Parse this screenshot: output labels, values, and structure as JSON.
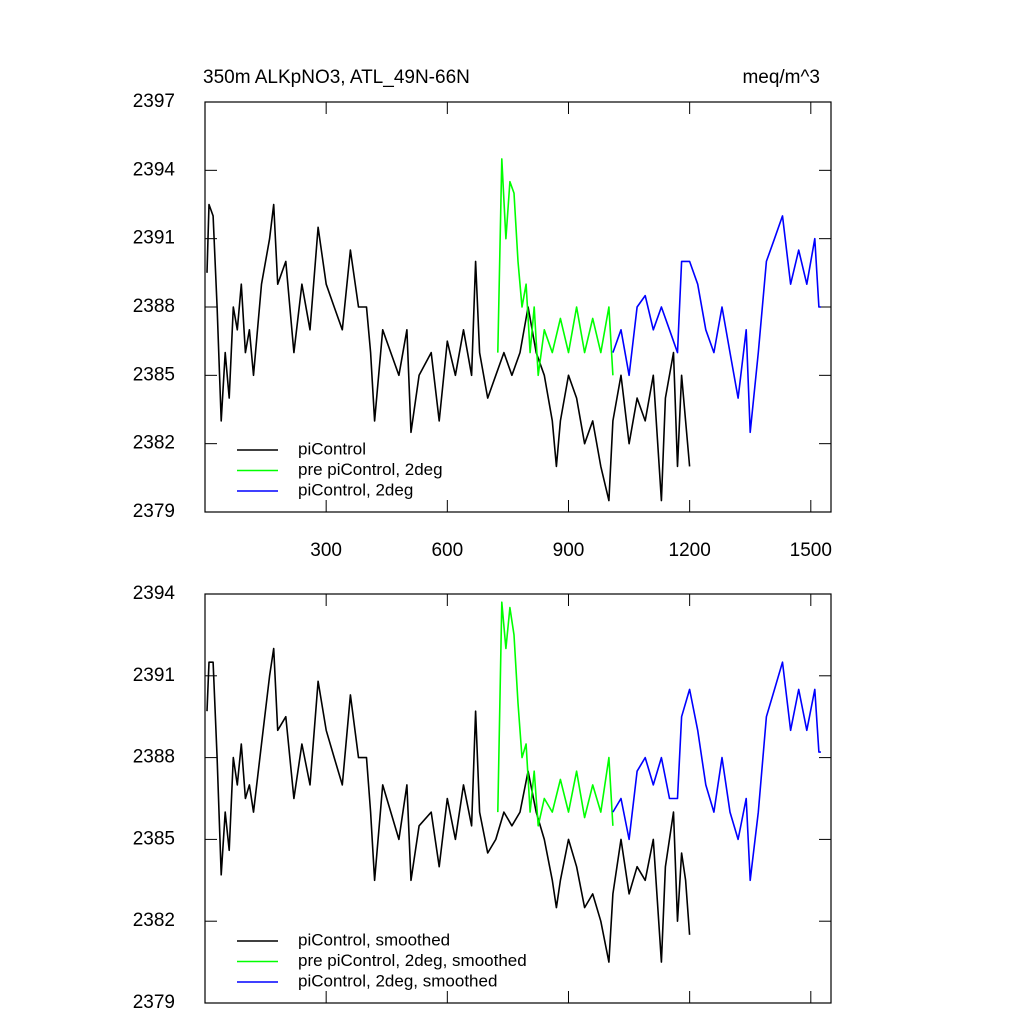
{
  "chart_data": [
    {
      "type": "line",
      "title": "350m ALKpNO3, ATL_49N-66N",
      "units": "meq/m^3",
      "xlim": [
        0,
        1550
      ],
      "xticks": [
        300,
        600,
        900,
        1200,
        1500
      ],
      "xtick_labels": true,
      "ylim": [
        2379,
        2397
      ],
      "yticks": [
        2379,
        2382,
        2385,
        2388,
        2391,
        2394,
        2397
      ],
      "legend": "lower left",
      "series": [
        {
          "name": "piControl",
          "color": "#000000",
          "x": [
            5,
            10,
            20,
            30,
            40,
            50,
            60,
            70,
            80,
            90,
            100,
            110,
            120,
            140,
            160,
            170,
            180,
            200,
            220,
            240,
            260,
            280,
            300,
            320,
            340,
            360,
            380,
            400,
            410,
            420,
            440,
            460,
            480,
            500,
            510,
            530,
            560,
            580,
            600,
            620,
            640,
            660,
            670,
            680,
            700,
            720,
            740,
            760,
            780,
            800,
            820,
            840,
            860,
            870,
            880,
            900,
            920,
            940,
            960,
            980,
            1000,
            1010,
            1030,
            1050,
            1070,
            1090,
            1110,
            1130,
            1140,
            1160,
            1170,
            1180,
            1190,
            1200
          ],
          "values": [
            2389.5,
            2392.5,
            2392,
            2388,
            2383,
            2386,
            2384,
            2388,
            2387,
            2389,
            2386,
            2387,
            2385,
            2389,
            2391,
            2392.5,
            2389,
            2390,
            2386,
            2389,
            2387,
            2391.5,
            2389,
            2388,
            2387,
            2390.5,
            2388,
            2388,
            2386,
            2383,
            2387,
            2386,
            2385,
            2387,
            2382.5,
            2385,
            2386,
            2383,
            2386.5,
            2385,
            2387,
            2385,
            2390,
            2386,
            2384,
            2385,
            2386,
            2385,
            2386,
            2388,
            2386,
            2385,
            2383,
            2381,
            2383,
            2385,
            2384,
            2382,
            2383,
            2381,
            2379.5,
            2383,
            2385,
            2382,
            2384,
            2383,
            2385,
            2379.5,
            2384,
            2386,
            2381,
            2385,
            2383,
            2381
          ]
        },
        {
          "name": "pre piControl, 2deg",
          "color": "#00ff00",
          "x": [
            725,
            735,
            745,
            755,
            765,
            775,
            785,
            795,
            805,
            815,
            825,
            840,
            860,
            880,
            900,
            920,
            940,
            960,
            980,
            1000,
            1010
          ],
          "values": [
            2386,
            2394.5,
            2391,
            2393.5,
            2393,
            2390,
            2388,
            2389,
            2386,
            2388,
            2385,
            2387,
            2386,
            2387.5,
            2386,
            2388,
            2386,
            2387.5,
            2386,
            2388,
            2385
          ]
        },
        {
          "name": "piControl, 2deg",
          "color": "#0000ff",
          "x": [
            1010,
            1030,
            1050,
            1070,
            1090,
            1110,
            1130,
            1150,
            1170,
            1180,
            1200,
            1220,
            1240,
            1260,
            1280,
            1300,
            1320,
            1340,
            1350,
            1370,
            1390,
            1410,
            1430,
            1450,
            1470,
            1490,
            1510,
            1520,
            1525
          ],
          "values": [
            2386,
            2387,
            2385,
            2388,
            2388.5,
            2387,
            2388,
            2387,
            2386,
            2390,
            2390,
            2389,
            2387,
            2386,
            2388,
            2386,
            2384,
            2387,
            2382.5,
            2386,
            2390,
            2391,
            2392,
            2389,
            2390.5,
            2389,
            2391,
            2388,
            2388
          ]
        }
      ]
    },
    {
      "type": "line",
      "xlim": [
        0,
        1550
      ],
      "xticks": [
        300,
        600,
        900,
        1200,
        1500
      ],
      "xtick_labels": false,
      "ylim": [
        2379,
        2394
      ],
      "yticks": [
        2379,
        2382,
        2385,
        2388,
        2391,
        2394
      ],
      "legend": "lower left",
      "series": [
        {
          "name": "piControl, smoothed",
          "color": "#000000",
          "x": [
            5,
            10,
            20,
            30,
            40,
            50,
            60,
            70,
            80,
            90,
            100,
            110,
            120,
            140,
            160,
            170,
            180,
            200,
            220,
            240,
            260,
            280,
            300,
            320,
            340,
            360,
            380,
            400,
            410,
            420,
            440,
            460,
            480,
            500,
            510,
            530,
            560,
            580,
            600,
            620,
            640,
            660,
            670,
            680,
            700,
            720,
            740,
            760,
            780,
            800,
            820,
            840,
            860,
            870,
            880,
            900,
            920,
            940,
            960,
            980,
            1000,
            1010,
            1030,
            1050,
            1070,
            1090,
            1110,
            1130,
            1140,
            1160,
            1170,
            1180,
            1190,
            1200
          ],
          "values": [
            2389.7,
            2391.5,
            2391.5,
            2388,
            2383.7,
            2386,
            2384.6,
            2388,
            2387,
            2388.5,
            2386.5,
            2387,
            2386,
            2388.5,
            2391,
            2392,
            2389,
            2389.5,
            2386.5,
            2388.5,
            2387,
            2390.8,
            2389,
            2388,
            2387,
            2390.3,
            2388,
            2388,
            2386,
            2383.5,
            2387,
            2386,
            2385,
            2387,
            2383.5,
            2385.5,
            2386,
            2384,
            2386.5,
            2385,
            2387,
            2385.5,
            2389.7,
            2386,
            2384.5,
            2385,
            2386,
            2385.5,
            2386,
            2387.5,
            2386,
            2385,
            2383.5,
            2382.5,
            2383.5,
            2385,
            2384,
            2382.5,
            2383,
            2382,
            2380.5,
            2383,
            2385,
            2383,
            2384,
            2383.5,
            2385,
            2380.5,
            2384,
            2386,
            2382,
            2384.5,
            2383.5,
            2381.5
          ]
        },
        {
          "name": "pre piControl, 2deg, smoothed",
          "color": "#00ff00",
          "x": [
            725,
            735,
            745,
            755,
            765,
            775,
            785,
            795,
            805,
            815,
            825,
            840,
            860,
            880,
            900,
            920,
            940,
            960,
            980,
            1000,
            1010
          ],
          "values": [
            2386,
            2393.7,
            2392,
            2393.5,
            2392.5,
            2390,
            2388,
            2388.5,
            2386,
            2387.5,
            2385.5,
            2386.5,
            2386,
            2387.2,
            2386,
            2387.5,
            2385.8,
            2387,
            2386,
            2388,
            2385.5
          ]
        },
        {
          "name": "piControl, 2deg, smoothed",
          "color": "#0000ff",
          "x": [
            1010,
            1030,
            1050,
            1070,
            1090,
            1110,
            1130,
            1150,
            1170,
            1180,
            1200,
            1220,
            1240,
            1260,
            1280,
            1300,
            1320,
            1340,
            1350,
            1370,
            1390,
            1410,
            1430,
            1450,
            1470,
            1490,
            1510,
            1520,
            1525
          ],
          "values": [
            2386,
            2386.5,
            2385,
            2387.5,
            2388,
            2387,
            2388,
            2386.5,
            2386.5,
            2389.5,
            2390.5,
            2389,
            2387,
            2386,
            2388,
            2386,
            2385,
            2386.5,
            2383.5,
            2386,
            2389.5,
            2390.5,
            2391.5,
            2389,
            2390.5,
            2389,
            2390.5,
            2388.2,
            2388.2
          ]
        }
      ]
    }
  ]
}
